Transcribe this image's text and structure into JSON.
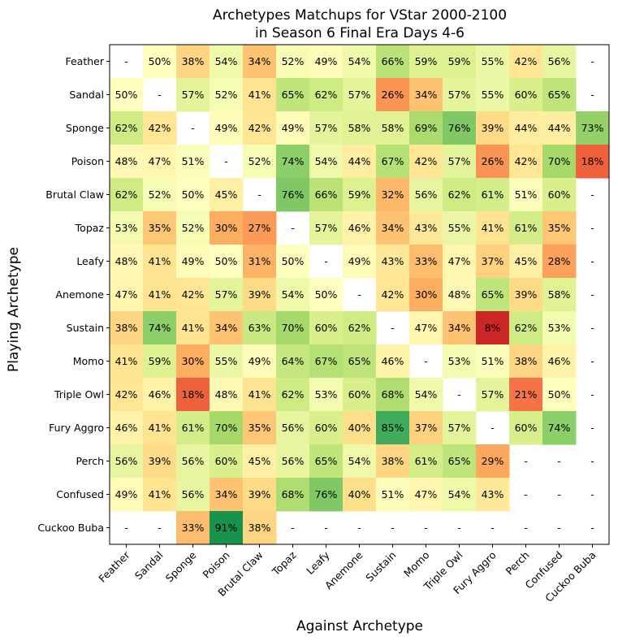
{
  "chart_data": {
    "type": "heatmap",
    "title_lines": [
      "Archetypes Matchups for VStar 2000-2100",
      "in Season 6 Final Era Days 4-6"
    ],
    "xlabel": "Against Archetype",
    "ylabel": "Playing Archetype",
    "rows": [
      "Feather",
      "Sandal",
      "Sponge",
      "Poison",
      "Brutal Claw",
      "Topaz",
      "Leafy",
      "Anemone",
      "Sustain",
      "Momo",
      "Triple Owl",
      "Fury Aggro",
      "Perch",
      "Confused",
      "Cuckoo Buba"
    ],
    "columns": [
      "Feather",
      "Sandal",
      "Sponge",
      "Poison",
      "Brutal Claw",
      "Topaz",
      "Leafy",
      "Anemone",
      "Sustain",
      "Momo",
      "Triple Owl",
      "Fury Aggro",
      "Perch",
      "Confused",
      "Cuckoo Buba"
    ],
    "missing_label": "-",
    "value_suffix": "%",
    "colormap": "RdYlGn",
    "value_range": [
      0,
      100
    ],
    "values": [
      [
        null,
        50,
        38,
        54,
        34,
        52,
        49,
        54,
        66,
        59,
        59,
        55,
        42,
        56,
        null
      ],
      [
        50,
        null,
        57,
        52,
        41,
        65,
        62,
        57,
        26,
        34,
        57,
        55,
        60,
        65,
        null
      ],
      [
        62,
        42,
        null,
        49,
        42,
        49,
        57,
        58,
        58,
        69,
        76,
        39,
        44,
        44,
        73
      ],
      [
        48,
        47,
        51,
        null,
        52,
        74,
        54,
        44,
        67,
        42,
        57,
        26,
        42,
        70,
        18
      ],
      [
        62,
        52,
        50,
        45,
        null,
        76,
        66,
        59,
        32,
        56,
        62,
        61,
        51,
        60,
        null
      ],
      [
        53,
        35,
        52,
        30,
        27,
        null,
        57,
        46,
        34,
        43,
        55,
        41,
        61,
        35,
        null
      ],
      [
        48,
        41,
        49,
        50,
        31,
        50,
        null,
        49,
        43,
        33,
        47,
        37,
        45,
        28,
        null
      ],
      [
        47,
        41,
        42,
        57,
        39,
        54,
        50,
        null,
        42,
        30,
        48,
        65,
        39,
        58,
        null
      ],
      [
        38,
        74,
        41,
        34,
        63,
        70,
        60,
        62,
        null,
        47,
        34,
        8,
        62,
        53,
        null
      ],
      [
        41,
        59,
        30,
        55,
        49,
        64,
        67,
        65,
        46,
        null,
        53,
        51,
        38,
        46,
        null
      ],
      [
        42,
        46,
        18,
        48,
        41,
        62,
        53,
        60,
        68,
        54,
        null,
        57,
        21,
        50,
        null
      ],
      [
        46,
        41,
        61,
        70,
        35,
        56,
        60,
        40,
        85,
        37,
        57,
        null,
        60,
        74,
        null
      ],
      [
        56,
        39,
        56,
        60,
        45,
        56,
        65,
        54,
        38,
        61,
        65,
        29,
        null,
        null,
        null
      ],
      [
        49,
        41,
        56,
        34,
        39,
        68,
        76,
        40,
        51,
        47,
        54,
        43,
        null,
        null,
        null
      ],
      [
        null,
        null,
        33,
        91,
        38,
        null,
        null,
        null,
        null,
        null,
        null,
        null,
        null,
        null,
        null
      ]
    ]
  }
}
